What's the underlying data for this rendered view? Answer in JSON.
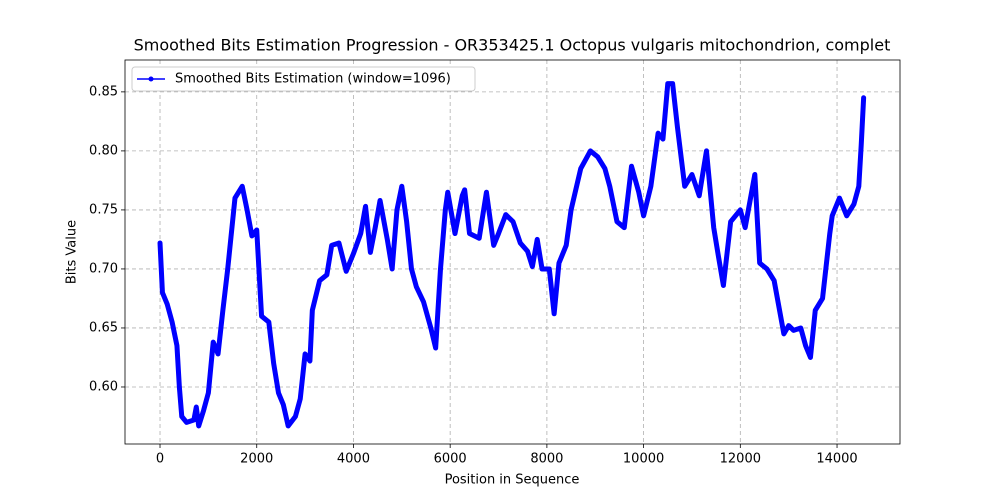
{
  "chart_data": {
    "type": "line",
    "title": "Smoothed Bits Estimation Progression - OR353425.1 Octopus vulgaris mitochondrion, complet",
    "x_label": "Position in Sequence",
    "y_label": "Bits Value",
    "xlim": [
      -724,
      15302
    ],
    "ylim": [
      0.5517,
      0.877
    ],
    "xticks": [
      0,
      2000,
      4000,
      6000,
      8000,
      10000,
      12000,
      14000
    ],
    "yticks": [
      {
        "value": 0.6,
        "label": "0.60"
      },
      0.65,
      {
        "value": 0.7,
        "label": "0.70"
      },
      0.75,
      {
        "value": 0.8,
        "label": "0.80"
      },
      0.85
    ],
    "grid": true,
    "legend": "upper left",
    "x": [
      0,
      50,
      150,
      250,
      350,
      400,
      450,
      550,
      700,
      750,
      800,
      900,
      1000,
      1100,
      1200,
      1300,
      1400,
      1550,
      1700,
      1800,
      1900,
      2000,
      2100,
      2250,
      2350,
      2450,
      2550,
      2650,
      2800,
      2900,
      3000,
      3100,
      3150,
      3300,
      3450,
      3550,
      3700,
      3850,
      4000,
      4150,
      4250,
      4350,
      4450,
      4550,
      4700,
      4800,
      4900,
      5000,
      5100,
      5200,
      5300,
      5450,
      5600,
      5700,
      5800,
      5900,
      5950,
      6100,
      6250,
      6300,
      6400,
      6600,
      6750,
      6900,
      7000,
      7150,
      7300,
      7450,
      7600,
      7700,
      7800,
      7900,
      8050,
      8150,
      8250,
      8400,
      8500,
      8700,
      8900,
      9050,
      9200,
      9300,
      9450,
      9600,
      9750,
      9900,
      10000,
      10150,
      10300,
      10400,
      10500,
      10600,
      10700,
      10850,
      11000,
      11150,
      11300,
      11450,
      11550,
      11650,
      11800,
      11900,
      12000,
      12100,
      12300,
      12400,
      12550,
      12700,
      12900,
      13000,
      13100,
      13250,
      13350,
      13450,
      13550,
      13700,
      13850,
      13900,
      14050,
      14200,
      14350,
      14450,
      14500,
      14550
    ],
    "series": [
      {
        "name": "Smoothed Bits Estimation (window=1096)",
        "color": "#0000ff",
        "values": [
          0.722,
          0.68,
          0.67,
          0.655,
          0.635,
          0.6,
          0.575,
          0.57,
          0.572,
          0.583,
          0.567,
          0.58,
          0.595,
          0.638,
          0.628,
          0.665,
          0.7,
          0.76,
          0.77,
          0.75,
          0.728,
          0.733,
          0.66,
          0.655,
          0.62,
          0.595,
          0.585,
          0.567,
          0.575,
          0.59,
          0.628,
          0.622,
          0.665,
          0.69,
          0.695,
          0.72,
          0.722,
          0.698,
          0.713,
          0.73,
          0.753,
          0.714,
          0.735,
          0.758,
          0.725,
          0.7,
          0.75,
          0.77,
          0.74,
          0.7,
          0.685,
          0.672,
          0.65,
          0.633,
          0.7,
          0.75,
          0.765,
          0.73,
          0.762,
          0.767,
          0.73,
          0.726,
          0.765,
          0.72,
          0.73,
          0.746,
          0.74,
          0.722,
          0.715,
          0.702,
          0.725,
          0.7,
          0.7,
          0.662,
          0.705,
          0.72,
          0.75,
          0.785,
          0.8,
          0.795,
          0.785,
          0.77,
          0.74,
          0.735,
          0.787,
          0.765,
          0.745,
          0.77,
          0.815,
          0.81,
          0.857,
          0.857,
          0.82,
          0.77,
          0.78,
          0.762,
          0.8,
          0.735,
          0.71,
          0.686,
          0.74,
          0.745,
          0.75,
          0.735,
          0.78,
          0.705,
          0.7,
          0.69,
          0.645,
          0.652,
          0.648,
          0.65,
          0.635,
          0.625,
          0.665,
          0.675,
          0.73,
          0.745,
          0.76,
          0.745,
          0.755,
          0.77,
          0.805,
          0.845
        ]
      }
    ]
  }
}
